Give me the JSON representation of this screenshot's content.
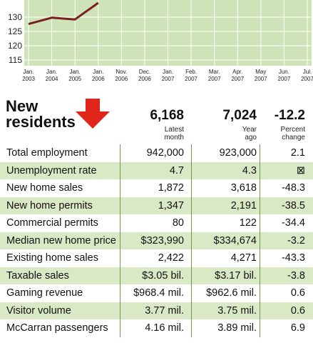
{
  "chart_data": {
    "type": "line",
    "x_ticks": [
      [
        "Jan.",
        "2003"
      ],
      [
        "Jan.",
        "2004"
      ],
      [
        "Jan.",
        "2005"
      ],
      [
        "Jan.",
        "2006"
      ],
      [
        "Nov.",
        "2006"
      ],
      [
        "Dec.",
        "2006"
      ],
      [
        "Jan.",
        "2007"
      ],
      [
        "Feb.",
        "2007"
      ],
      [
        "Mar.",
        "2007"
      ],
      [
        "Apr.",
        "2007"
      ],
      [
        "May",
        "2007"
      ],
      [
        "Jun.",
        "2007"
      ],
      [
        "Jul.",
        "2007"
      ]
    ],
    "y_ticks": [
      115,
      120,
      125,
      130
    ],
    "ylim": [
      113,
      136
    ],
    "series": [
      {
        "values": [
          127.6,
          129.8,
          129.2,
          135,
          null,
          null,
          null,
          null,
          null,
          null,
          null,
          null,
          null
        ],
        "color": "#7a1f22"
      }
    ],
    "background": "#cfe3b8",
    "grid": true
  },
  "header": {
    "title_line1": "New",
    "title_line2": "residents",
    "arrow_icon": "red-down-arrow-icon",
    "latest_value": "6,168",
    "latest_sub_1": "Latest",
    "latest_sub_2": "month",
    "ago_value": "7,024",
    "ago_sub_1": "Year",
    "ago_sub_2": "ago",
    "pct_value": "-12.2",
    "pct_sub_1": "Percent",
    "pct_sub_2": "change"
  },
  "rows": [
    {
      "label": "Total employment",
      "latest": "942,000",
      "ago": "923,000",
      "pct": "2.1"
    },
    {
      "label": "Unemployment rate",
      "latest": "4.7",
      "ago": "4.3",
      "pct": "⊠"
    },
    {
      "label": "New home sales",
      "latest": "1,872",
      "ago": "3,618",
      "pct": "-48.3"
    },
    {
      "label": "New home permits",
      "latest": "1,347",
      "ago": "2,191",
      "pct": "-38.5"
    },
    {
      "label": "Commercial permits",
      "latest": "80",
      "ago": "122",
      "pct": "-34.4"
    },
    {
      "label": "Median new home price",
      "latest": "$323,990",
      "ago": "$334,674",
      "pct": "-3.2"
    },
    {
      "label": "Existing home sales",
      "latest": "2,422",
      "ago": "4,271",
      "pct": "-43.3"
    },
    {
      "label": "Taxable sales",
      "latest": "$3.05 bil.",
      "ago": "$3.17 bil.",
      "pct": "-3.8"
    },
    {
      "label": "Gaming revenue",
      "latest": "$968.4 mil.",
      "ago": "$962.6 mil.",
      "pct": "0.6"
    },
    {
      "label": "Visitor volume",
      "latest": "3.77 mil.",
      "ago": "3.75 mil.",
      "pct": "0.6"
    },
    {
      "label": "McCarran passengers",
      "latest": "4.16 mil.",
      "ago": "3.89 mil.",
      "pct": "6.9"
    }
  ],
  "colors": {
    "row_alt": "#d9e9c6",
    "rule": "#6a9a4a",
    "arrow": "#e0251b"
  }
}
